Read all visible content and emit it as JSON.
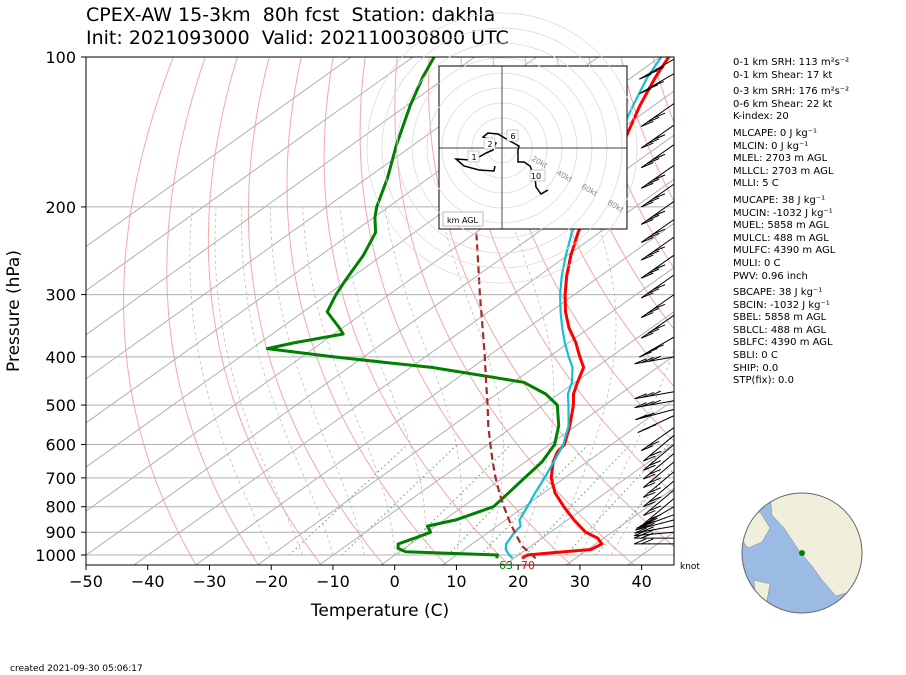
{
  "title": {
    "line1": "CPEX-AW 15-3km  80h fcst  Station: dakhla",
    "line2": "Init: 2021093000  Valid: 202110030800 UTC"
  },
  "created": "created 2021-09-30 05:06:17",
  "wind_unit": "knot",
  "hodograph": {
    "label": "km AGL",
    "ring_labels": [
      "20kt",
      "40kt",
      "60kt",
      "80kt"
    ],
    "height_labels": [
      "1",
      "2",
      "6",
      "10"
    ]
  },
  "surface_labels": {
    "dewpoint": "63",
    "temperature": "70"
  },
  "indices": [
    "0-1 km SRH: 113 m²s⁻²",
    "0-1 km Shear: 17 kt",
    "0-3 km SRH: 176 m²s⁻²",
    "0-6 km Shear: 22 kt",
    "K-index: 20",
    "MLCAPE: 0 J kg⁻¹",
    "MLCIN: 0 J kg⁻¹",
    "MLEL: 2703 m AGL",
    "MLLCL: 2703 m AGL",
    "MLLI: 5 C",
    "MUCAPE: 38 J kg⁻¹",
    "MUCIN: -1032 J kg⁻¹",
    "MUEL: 5858 m AGL",
    "MULCL: 488 m AGL",
    "MULFC: 4390 m AGL",
    "MULI: 0 C",
    "PWV: 0.96 inch",
    "SBCAPE: 38 J kg⁻¹",
    "SBCIN: -1032 J kg⁻¹",
    "SBEL: 5858 m AGL",
    "SBLCL: 488 m AGL",
    "SBLFC: 4390 m AGL",
    "SBLI: 0 C",
    "SHIP: 0.0",
    "STP(fix): 0.0"
  ],
  "colors": {
    "temperature": "#ff0000",
    "dewpoint": "#008000",
    "wetbulb": "#17becf",
    "parcel": "#a52a2a",
    "isotherm": "#b0b0b0",
    "dry_adiabat": "#f4a8a8",
    "mixing_ratio": "#4caf50"
  },
  "chart_data": {
    "type": "skew-t",
    "xlabel": "Temperature (C)",
    "ylabel": "Pressure (hPa)",
    "xlim": [
      -50,
      45
    ],
    "ylim": [
      1050,
      100
    ],
    "y_scale": "log",
    "xticks": [
      -50,
      -40,
      -30,
      -20,
      -10,
      0,
      10,
      20,
      30,
      40
    ],
    "yticks": [
      100,
      200,
      300,
      400,
      500,
      600,
      700,
      800,
      900,
      1000
    ],
    "series": [
      {
        "key": "temperature",
        "points": [
          [
            1015,
            21.3
          ],
          [
            1000,
            21.5
          ],
          [
            990,
            25
          ],
          [
            975,
            30.5
          ],
          [
            950,
            31
          ],
          [
            925,
            29
          ],
          [
            900,
            25.7
          ],
          [
            850,
            21
          ],
          [
            800,
            16.4
          ],
          [
            750,
            11.8
          ],
          [
            700,
            7.8
          ],
          [
            650,
            4.5
          ],
          [
            620,
            2.9
          ],
          [
            600,
            2.4
          ],
          [
            550,
            -1
          ],
          [
            500,
            -5.1
          ],
          [
            475,
            -7.6
          ],
          [
            450,
            -9.6
          ],
          [
            420,
            -12
          ],
          [
            400,
            -15
          ],
          [
            375,
            -18.8
          ],
          [
            350,
            -23.3
          ],
          [
            325,
            -27.5
          ],
          [
            300,
            -31.5
          ],
          [
            275,
            -35.5
          ],
          [
            250,
            -39.5
          ],
          [
            225,
            -43.5
          ],
          [
            200,
            -47.3
          ],
          [
            175,
            -51.4
          ],
          [
            150,
            -56.2
          ],
          [
            125,
            -62.3
          ],
          [
            110,
            -66.1
          ],
          [
            100,
            -68.6
          ]
        ]
      },
      {
        "key": "wetbulb",
        "points": [
          [
            1015,
            19.8
          ],
          [
            1000,
            18.5
          ],
          [
            975,
            16.7
          ],
          [
            950,
            15.5
          ],
          [
            900,
            14.2
          ],
          [
            875,
            13.8
          ],
          [
            850,
            12.2
          ],
          [
            800,
            10.5
          ],
          [
            750,
            8.6
          ],
          [
            700,
            6.7
          ],
          [
            650,
            4.6
          ],
          [
            600,
            2.2
          ],
          [
            550,
            -1.2
          ],
          [
            500,
            -5.9
          ],
          [
            475,
            -8.5
          ],
          [
            450,
            -10.5
          ],
          [
            420,
            -13.8
          ],
          [
            400,
            -16.8
          ],
          [
            375,
            -20.6
          ],
          [
            350,
            -24.4
          ],
          [
            325,
            -28.3
          ],
          [
            300,
            -32.3
          ],
          [
            275,
            -36.3
          ],
          [
            250,
            -40.3
          ],
          [
            225,
            -44.5
          ],
          [
            200,
            -48.5
          ],
          [
            175,
            -52.6
          ],
          [
            150,
            -57.5
          ],
          [
            125,
            -63.4
          ],
          [
            110,
            -67.4
          ],
          [
            100,
            -69.8
          ]
        ]
      },
      {
        "key": "dewpoint",
        "points": [
          [
            1015,
            17.2
          ],
          [
            1000,
            16.6
          ],
          [
            985,
            1
          ],
          [
            970,
            -1
          ],
          [
            950,
            -2
          ],
          [
            925,
            -0.6
          ],
          [
            900,
            0.6
          ],
          [
            875,
            -1.3
          ],
          [
            850,
            1.9
          ],
          [
            800,
            5
          ],
          [
            750,
            4.3
          ],
          [
            700,
            3.5
          ],
          [
            650,
            2.7
          ],
          [
            600,
            0.8
          ],
          [
            550,
            -2.8
          ],
          [
            500,
            -7.7
          ],
          [
            475,
            -12.1
          ],
          [
            450,
            -18.3
          ],
          [
            420,
            -36.6
          ],
          [
            400,
            -55
          ],
          [
            385,
            -67.5
          ],
          [
            375,
            -64.5
          ],
          [
            360,
            -58.5
          ],
          [
            350,
            -60.5
          ],
          [
            325,
            -66.1
          ],
          [
            300,
            -68.6
          ],
          [
            280,
            -70.4
          ],
          [
            250,
            -73.1
          ],
          [
            225,
            -76.3
          ],
          [
            210,
            -79.8
          ],
          [
            200,
            -81.9
          ],
          [
            175,
            -86.7
          ],
          [
            150,
            -92.8
          ],
          [
            125,
            -99.5
          ],
          [
            110,
            -103.8
          ],
          [
            100,
            -106.6
          ]
        ]
      },
      {
        "key": "parcel",
        "points": [
          [
            1015,
            23.5
          ],
          [
            960,
            18.6
          ],
          [
            900,
            14.2
          ],
          [
            850,
            10.5
          ],
          [
            800,
            6.7
          ],
          [
            750,
            2.8
          ],
          [
            700,
            -1.2
          ],
          [
            650,
            -5.3
          ],
          [
            600,
            -9.6
          ],
          [
            550,
            -14.2
          ],
          [
            500,
            -19
          ],
          [
            450,
            -24.4
          ],
          [
            400,
            -30.4
          ],
          [
            350,
            -37.3
          ],
          [
            300,
            -45.3
          ],
          [
            250,
            -54.6
          ],
          [
            200,
            -66
          ],
          [
            150,
            -79.9
          ],
          [
            127,
            -87.8
          ]
        ]
      }
    ],
    "wind_barbs": [
      [
        101,
        60,
        3
      ],
      [
        108,
        60,
        3
      ],
      [
        124,
        55,
        3
      ],
      [
        137,
        55,
        3
      ],
      [
        150,
        55,
        3
      ],
      [
        165,
        55,
        3
      ],
      [
        180,
        55,
        3
      ],
      [
        195,
        55,
        3
      ],
      [
        212,
        55,
        3
      ],
      [
        230,
        55,
        3
      ],
      [
        250,
        55,
        3
      ],
      [
        274,
        55,
        3
      ],
      [
        300,
        55,
        3
      ],
      [
        330,
        55,
        3
      ],
      [
        365,
        60,
        3
      ],
      [
        400,
        80,
        3
      ],
      [
        470,
        80,
        3
      ],
      [
        490,
        80,
        3
      ],
      [
        510,
        75,
        2
      ],
      [
        525,
        65,
        2
      ],
      [
        555,
        55,
        2
      ],
      [
        575,
        50,
        2
      ],
      [
        600,
        50,
        2
      ],
      [
        625,
        50,
        2
      ],
      [
        650,
        50,
        2
      ],
      [
        680,
        50,
        2
      ],
      [
        710,
        50,
        2
      ],
      [
        740,
        50,
        2
      ],
      [
        770,
        50,
        2
      ],
      [
        800,
        60,
        2
      ],
      [
        830,
        70,
        2
      ],
      [
        850,
        75,
        2
      ],
      [
        875,
        80,
        2
      ],
      [
        900,
        85,
        2
      ],
      [
        925,
        90,
        2
      ],
      [
        950,
        90,
        2
      ]
    ]
  }
}
